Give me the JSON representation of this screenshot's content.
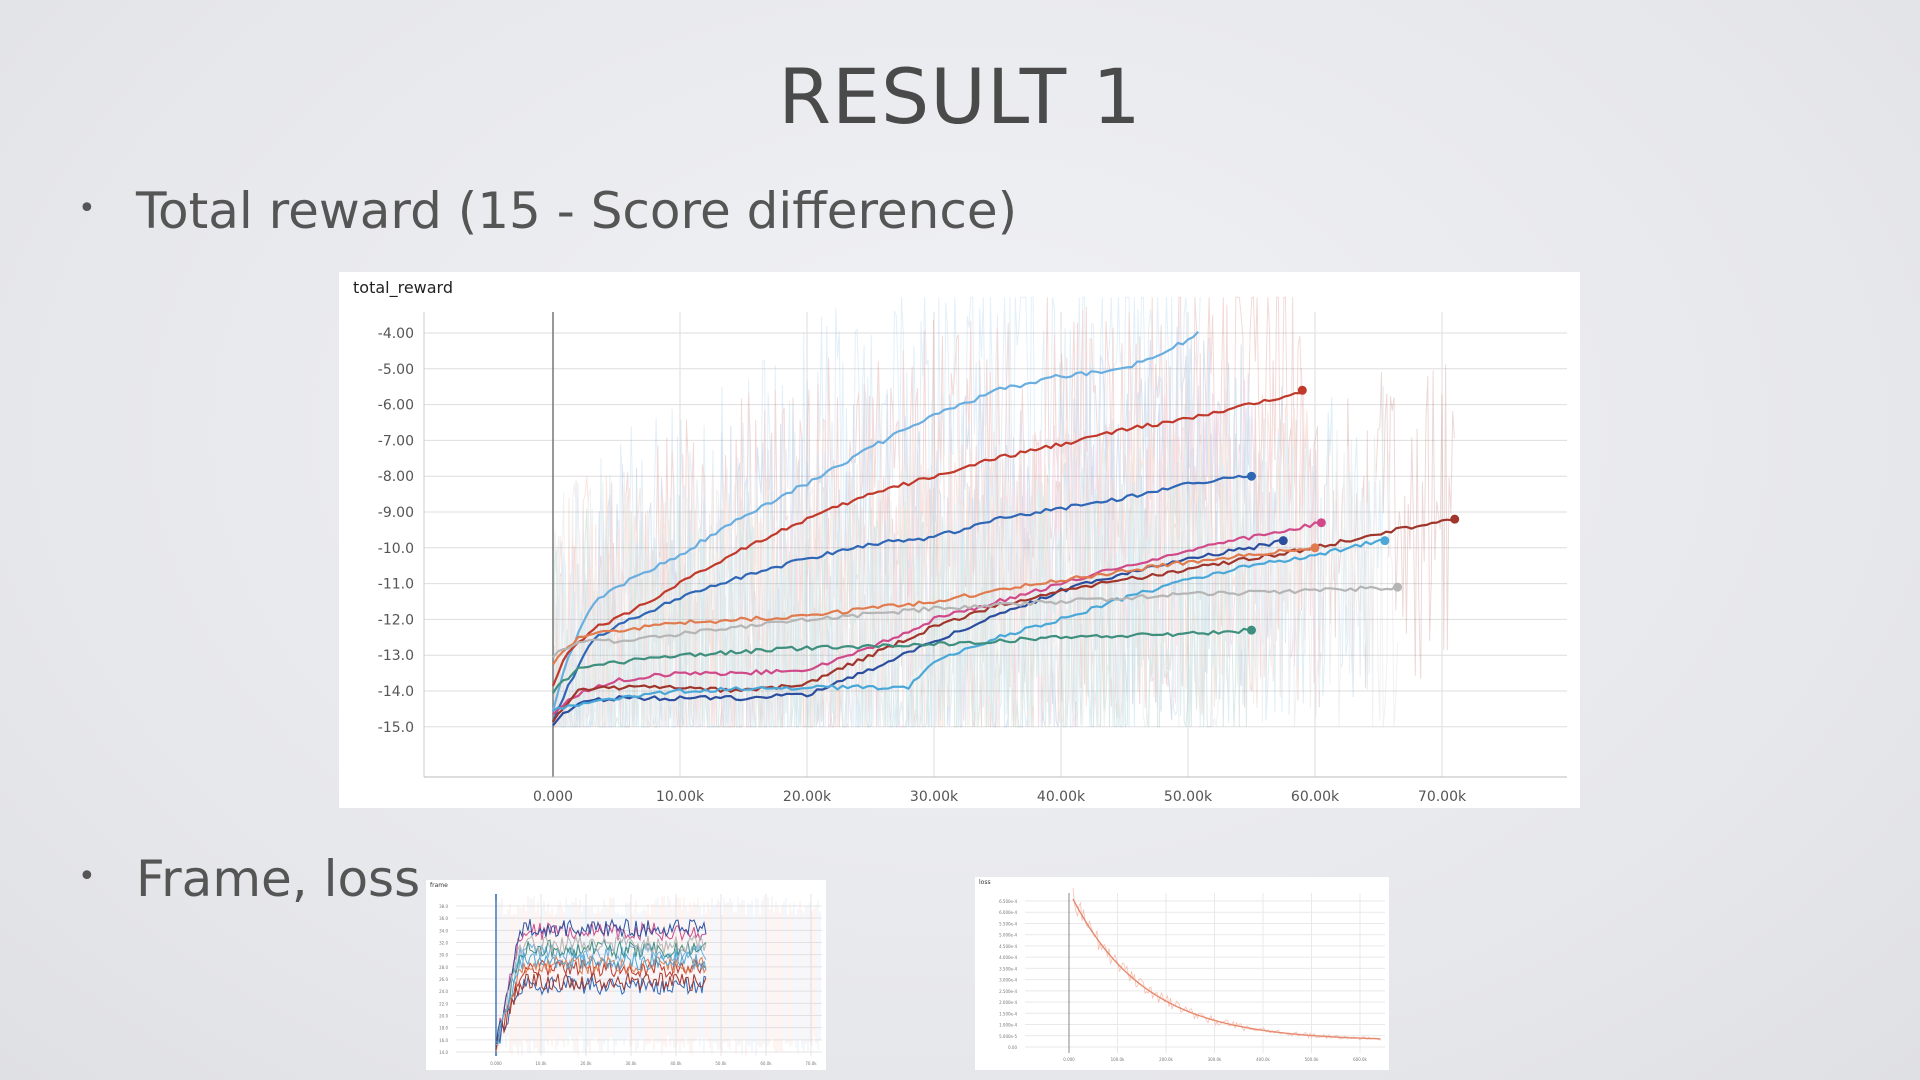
{
  "slide": {
    "title": "RESULT 1",
    "bullets": [
      "Total reward (15 - Score difference)",
      "Frame, loss"
    ]
  },
  "chart_data": [
    {
      "type": "line",
      "title": "total_reward",
      "xlabel": "",
      "ylabel": "",
      "xlim": [
        -10000,
        80000
      ],
      "ylim": [
        -16,
        -3
      ],
      "xticks": [
        0,
        10000,
        20000,
        30000,
        40000,
        50000,
        60000,
        70000
      ],
      "xtick_labels": [
        "0.000",
        "10.00k",
        "20.00k",
        "30.00k",
        "40.00k",
        "50.00k",
        "60.00k",
        "70.00k"
      ],
      "yticks": [
        -4,
        -5,
        -6,
        -7,
        -8,
        -9,
        -10,
        -11,
        -12,
        -13,
        -14,
        -15
      ],
      "ytick_labels": [
        "-4.00",
        "-5.00",
        "-6.00",
        "-7.00",
        "-8.00",
        "-9.00",
        "-10.0",
        "-11.0",
        "-12.0",
        "-13.0",
        "-14.0",
        "-15.0"
      ],
      "grid": true,
      "series": [
        {
          "color": "#6aaee0",
          "x": [
            0,
            1000,
            3000,
            6000,
            10000,
            15000,
            20000,
            25000,
            30000,
            35000,
            40000,
            45000,
            50000,
            51000
          ],
          "y": [
            -14.5,
            -13.2,
            -11.6,
            -10.9,
            -10.2,
            -9.1,
            -8.2,
            -7.2,
            -6.3,
            -5.6,
            -5.2,
            -5.0,
            -4.2,
            -3.9
          ]
        },
        {
          "color": "#c0392b",
          "end_marker": true,
          "x": [
            0,
            1000,
            3000,
            6000,
            10000,
            15000,
            20000,
            25000,
            30000,
            35000,
            40000,
            45000,
            50000,
            55000,
            59000
          ],
          "y": [
            -13.8,
            -13.0,
            -12.3,
            -11.8,
            -11.0,
            -10.0,
            -9.2,
            -8.5,
            -8.0,
            -7.5,
            -7.1,
            -6.7,
            -6.4,
            -6.0,
            -5.6
          ]
        },
        {
          "color": "#2f66b5",
          "end_marker": true,
          "x": [
            0,
            1000,
            3000,
            6000,
            10000,
            15000,
            20000,
            25000,
            30000,
            35000,
            40000,
            45000,
            50000,
            55000
          ],
          "y": [
            -14.8,
            -14.0,
            -12.6,
            -12.0,
            -11.4,
            -10.8,
            -10.3,
            -9.9,
            -9.7,
            -9.2,
            -8.9,
            -8.6,
            -8.2,
            -8.0
          ]
        },
        {
          "color": "#d04a8a",
          "end_marker": true,
          "x": [
            0,
            2000,
            5000,
            10000,
            15000,
            20000,
            25000,
            30000,
            35000,
            40000,
            45000,
            50000,
            55000,
            60500
          ],
          "y": [
            -14.6,
            -14.1,
            -13.7,
            -13.5,
            -13.5,
            -13.4,
            -12.8,
            -12.0,
            -11.5,
            -11.0,
            -10.5,
            -10.1,
            -9.7,
            -9.3
          ]
        },
        {
          "color": "#2b4f9e",
          "end_marker": true,
          "x": [
            0,
            2000,
            5000,
            10000,
            15000,
            20000,
            25000,
            30000,
            35000,
            40000,
            45000,
            50000,
            55000,
            57500
          ],
          "y": [
            -14.9,
            -14.3,
            -14.2,
            -14.2,
            -14.2,
            -14.1,
            -13.4,
            -12.6,
            -11.9,
            -11.2,
            -10.7,
            -10.3,
            -10.0,
            -9.8
          ]
        },
        {
          "color": "#a0352c",
          "end_marker": true,
          "x": [
            0,
            2000,
            5000,
            10000,
            15000,
            20000,
            25000,
            30000,
            35000,
            40000,
            45000,
            50000,
            55000,
            60000,
            65000,
            71000
          ],
          "y": [
            -14.8,
            -14.0,
            -13.9,
            -13.9,
            -14.0,
            -13.8,
            -13.0,
            -12.2,
            -11.6,
            -11.2,
            -10.9,
            -10.6,
            -10.3,
            -10.0,
            -9.6,
            -9.2
          ]
        },
        {
          "color": "#e07b50",
          "end_marker": true,
          "x": [
            0,
            2000,
            5000,
            10000,
            20000,
            30000,
            40000,
            50000,
            60000
          ],
          "y": [
            -13.2,
            -12.5,
            -12.3,
            -12.1,
            -11.9,
            -11.5,
            -10.9,
            -10.4,
            -10.0
          ]
        },
        {
          "color": "#4aa8d8",
          "end_marker": true,
          "x": [
            0,
            2000,
            5000,
            10000,
            20000,
            28000,
            30000,
            35000,
            40000,
            45000,
            50000,
            55000,
            60000,
            65000,
            65500
          ],
          "y": [
            -14.5,
            -14.4,
            -14.2,
            -14.0,
            -13.9,
            -13.9,
            -13.2,
            -12.5,
            -12.0,
            -11.4,
            -10.9,
            -10.5,
            -10.2,
            -9.8,
            -9.8
          ]
        },
        {
          "color": "#b5b5b5",
          "end_marker": true,
          "x": [
            0,
            2000,
            5000,
            10000,
            20000,
            30000,
            40000,
            50000,
            60000,
            66500
          ],
          "y": [
            -13.0,
            -12.6,
            -12.6,
            -12.4,
            -12.0,
            -11.7,
            -11.5,
            -11.3,
            -11.2,
            -11.1
          ]
        },
        {
          "color": "#3f8f7f",
          "end_marker": true,
          "x": [
            0,
            2000,
            5000,
            10000,
            20000,
            30000,
            40000,
            50000,
            55000
          ],
          "y": [
            -14.0,
            -13.4,
            -13.2,
            -13.0,
            -12.8,
            -12.7,
            -12.5,
            -12.4,
            -12.3
          ]
        }
      ]
    },
    {
      "type": "line",
      "title": "frame",
      "ytick_labels": [
        "38.0",
        "36.0",
        "34.0",
        "32.0",
        "30.0",
        "28.0",
        "26.0",
        "24.0",
        "22.0",
        "20.0",
        "18.0",
        "16.0",
        "14.0"
      ],
      "xtick_labels": [
        "0.000",
        "10.0k",
        "20.0k",
        "30.0k",
        "40.0k",
        "50.0k",
        "60.0k",
        "70.0k"
      ],
      "grid": true
    },
    {
      "type": "line",
      "title": "loss",
      "ytick_labels": [
        "6.500e-4",
        "6.000e-4",
        "5.500e-4",
        "5.000e-4",
        "4.500e-4",
        "4.000e-4",
        "3.500e-4",
        "3.000e-4",
        "2.500e-4",
        "2.000e-4",
        "1.500e-4",
        "1.000e-4",
        "5.000e-5",
        "0.00"
      ],
      "xtick_labels": [
        "0.000",
        "100.0k",
        "200.0k",
        "300.0k",
        "400.0k",
        "500.0k",
        "600.0k"
      ],
      "grid": true
    }
  ]
}
